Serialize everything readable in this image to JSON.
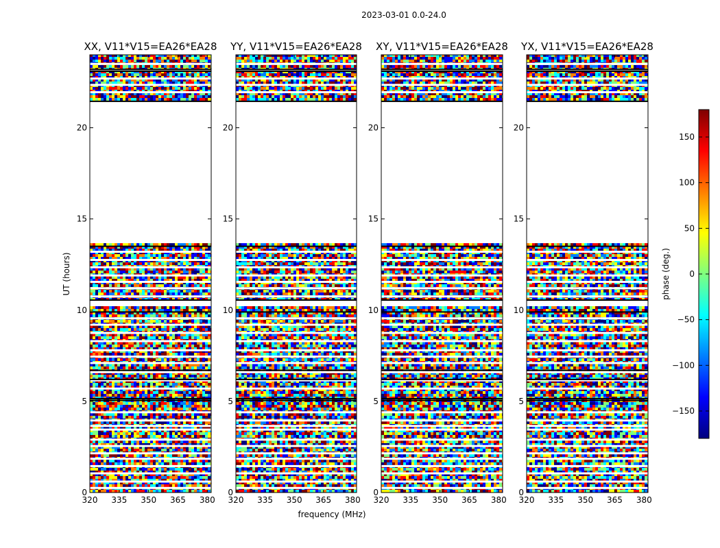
{
  "suptitle": "2023-03-01 0.0-24.0",
  "chart_data": {
    "type": "heatmap",
    "xlabel": "frequency (MHz)",
    "ylabel": "UT (hours)",
    "xlim": [
      320,
      382
    ],
    "ylim": [
      0,
      24
    ],
    "xticks": [
      "320",
      "335",
      "350",
      "365",
      "380"
    ],
    "yticks": [
      "0",
      "5",
      "10",
      "15",
      "20"
    ],
    "panels": [
      {
        "title": "XX, V11*V15=EA26*EA28"
      },
      {
        "title": "YY, V11*V15=EA26*EA28"
      },
      {
        "title": "XY, V11*V15=EA26*EA28"
      },
      {
        "title": "YX, V11*V15=EA26*EA28"
      }
    ],
    "colorbar": {
      "label": "phase (deg.)",
      "colormap": "jet",
      "range": [
        -180,
        180
      ],
      "ticks": [
        "150",
        "100",
        "50",
        "0",
        "−50",
        "−100",
        "−150"
      ],
      "colors": [
        "#00007f",
        "#0000ff",
        "#007fff",
        "#00ffff",
        "#7fff7f",
        "#ffff00",
        "#ff7f00",
        "#ff0000",
        "#7f0000"
      ]
    },
    "data_gaps_hours": [
      [
        13.55,
        21.4
      ]
    ],
    "note": "Phase vs. time and frequency; data visually noisy / quasi-random across panels."
  }
}
